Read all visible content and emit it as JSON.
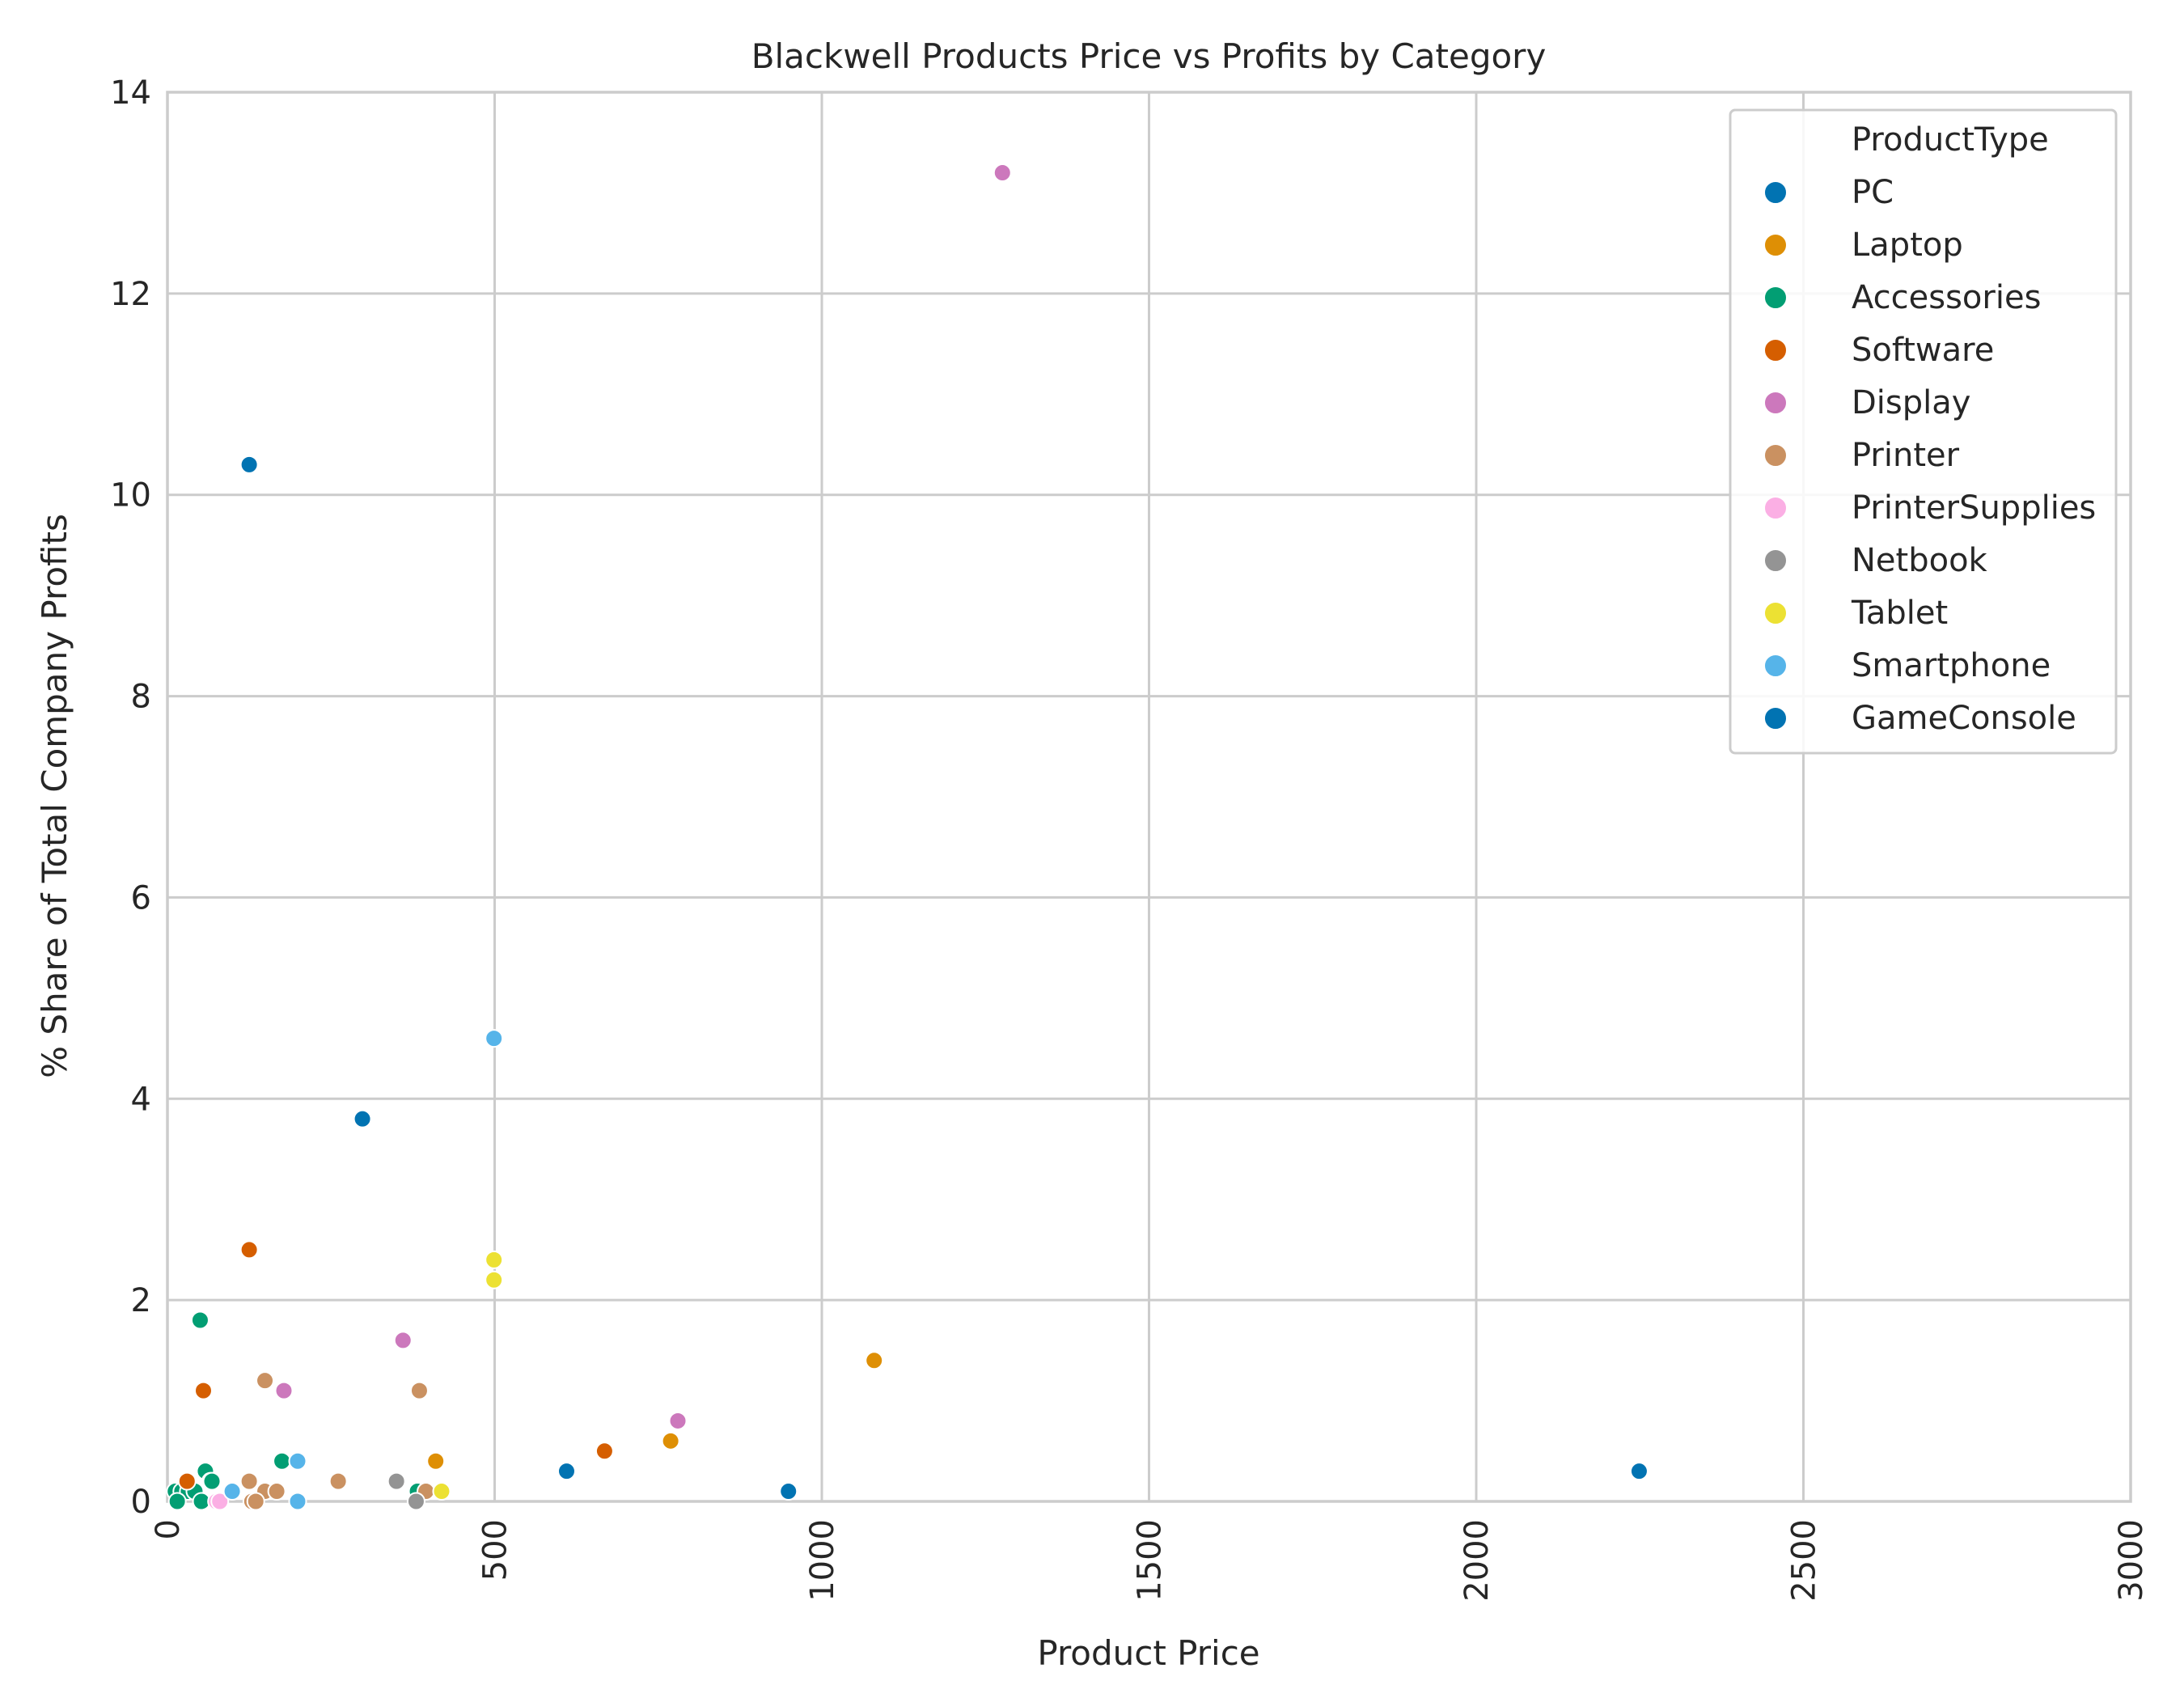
{
  "chart_data": {
    "type": "scatter",
    "title": "Blackwell Products Price vs Profits by Category",
    "xlabel": "Product Price",
    "ylabel": "% Share of Total Company Profits",
    "xlim": [
      0,
      3000
    ],
    "ylim": [
      0,
      14
    ],
    "xticks": [
      0,
      500,
      1000,
      1500,
      2000,
      2500,
      3000
    ],
    "yticks": [
      0,
      2,
      4,
      6,
      8,
      10,
      12,
      14
    ],
    "xtick_rotation": "vertical",
    "grid": true,
    "legend": {
      "title": "ProductType",
      "location": "upper right"
    },
    "series": [
      {
        "name": "PC",
        "color": "#0173b2",
        "points": [
          [
            125,
            10.3
          ],
          [
            298,
            3.8
          ],
          [
            610,
            0.3
          ],
          [
            949,
            0.1
          ],
          [
            2249,
            0.3
          ]
        ]
      },
      {
        "name": "Laptop",
        "color": "#de8f05",
        "points": [
          [
            1080,
            1.4
          ],
          [
            769,
            0.6
          ],
          [
            410,
            0.4
          ]
        ]
      },
      {
        "name": "Accessories",
        "color": "#029e73",
        "points": [
          [
            50,
            1.8
          ],
          [
            58,
            0.3
          ],
          [
            66,
            0.2
          ],
          [
            68,
            0.2
          ],
          [
            175,
            0.4
          ],
          [
            12,
            0.1
          ],
          [
            22,
            0.1
          ],
          [
            32,
            0.1
          ],
          [
            42,
            0.1
          ],
          [
            15,
            0.0
          ],
          [
            52,
            0.0
          ],
          [
            380,
            0.0
          ],
          [
            382,
            0.1
          ]
        ]
      },
      {
        "name": "Software",
        "color": "#d55e00",
        "points": [
          [
            125,
            2.5
          ],
          [
            55,
            1.1
          ],
          [
            668,
            0.5
          ],
          [
            30,
            0.2
          ]
        ]
      },
      {
        "name": "Display",
        "color": "#cc78bc",
        "points": [
          [
            1276,
            13.2
          ],
          [
            360,
            1.6
          ],
          [
            178,
            1.1
          ],
          [
            780,
            0.8
          ]
        ]
      },
      {
        "name": "Printer",
        "color": "#ca9161",
        "points": [
          [
            149,
            1.2
          ],
          [
            385,
            1.1
          ],
          [
            125,
            0.2
          ],
          [
            261,
            0.2
          ],
          [
            149,
            0.1
          ],
          [
            167,
            0.1
          ],
          [
            395,
            0.1
          ],
          [
            129,
            0.0
          ],
          [
            135,
            0.0
          ]
        ]
      },
      {
        "name": "PrinterSupplies",
        "color": "#fbafe4",
        "points": [
          [
            75,
            0.0
          ],
          [
            80,
            0.0
          ]
        ]
      },
      {
        "name": "Netbook",
        "color": "#949494",
        "points": [
          [
            350,
            0.2
          ],
          [
            380,
            0.0
          ]
        ]
      },
      {
        "name": "Tablet",
        "color": "#ece133",
        "points": [
          [
            499,
            2.4
          ],
          [
            499,
            2.2
          ],
          [
            419,
            0.1
          ]
        ]
      },
      {
        "name": "Smartphone",
        "color": "#56b4e9",
        "points": [
          [
            499,
            4.6
          ],
          [
            199,
            0.4
          ],
          [
            99,
            0.1
          ],
          [
            199,
            0.0
          ]
        ]
      },
      {
        "name": "GameConsole",
        "color": "#0173b2",
        "points": []
      }
    ]
  }
}
